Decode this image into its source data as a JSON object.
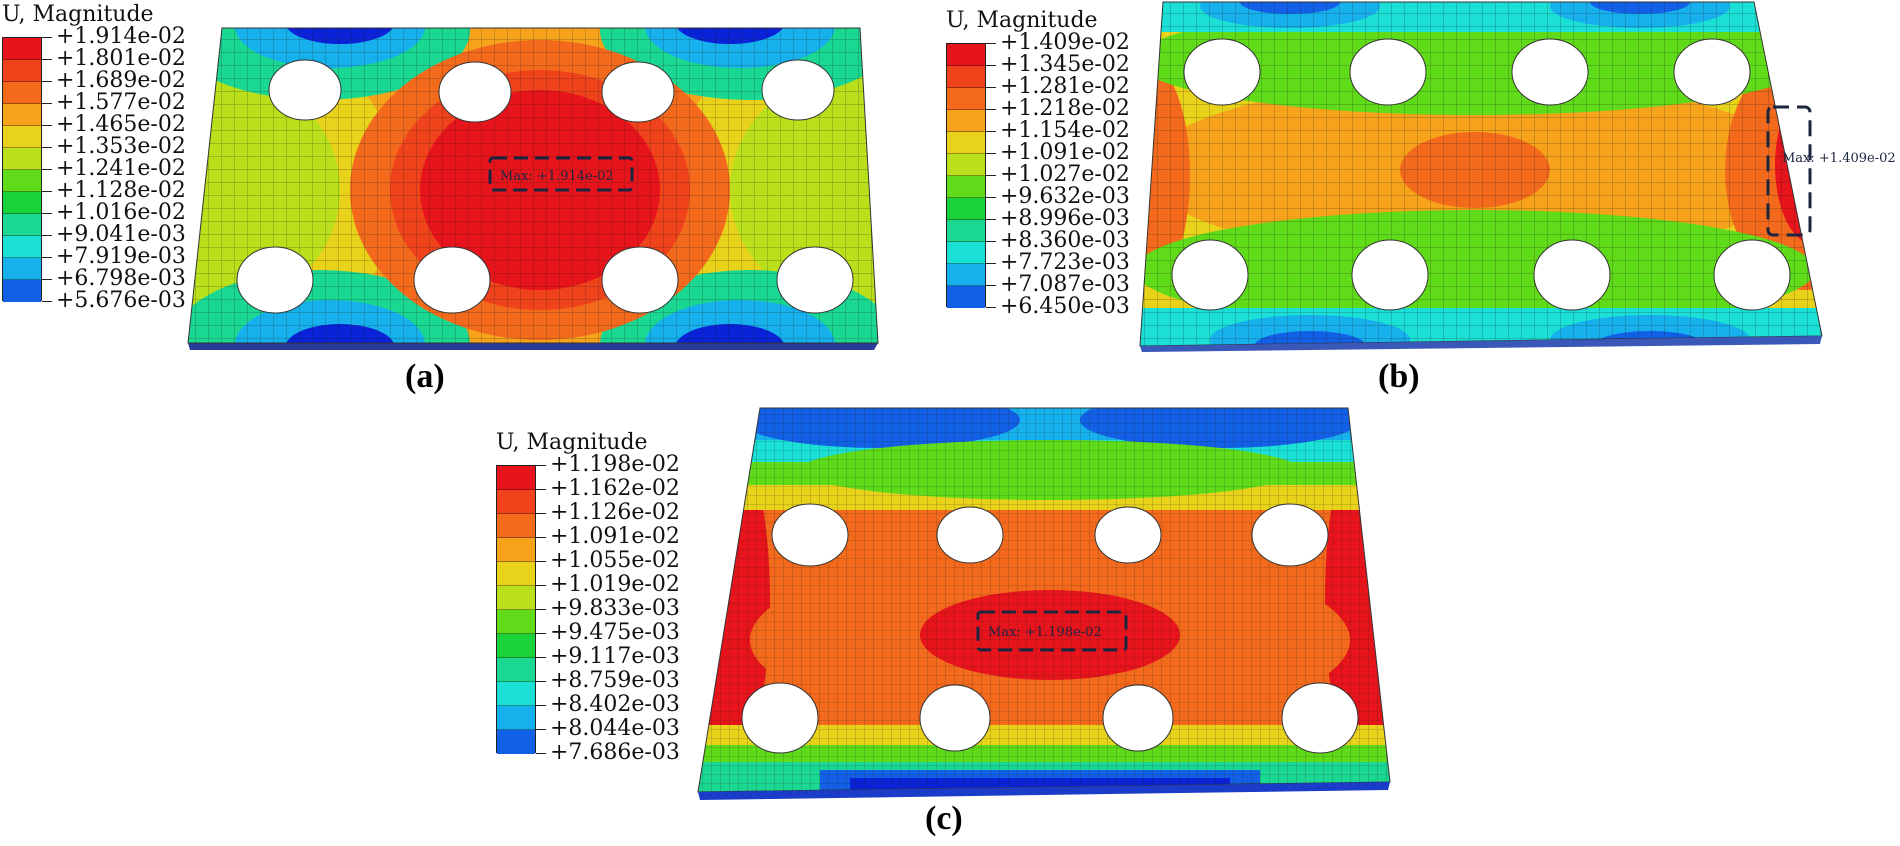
{
  "panels": [
    {
      "id": "a",
      "caption": "(a)",
      "legend_title": "U, Magnitude",
      "levels": [
        "+1.914e-02",
        "+1.801e-02",
        "+1.689e-02",
        "+1.577e-02",
        "+1.465e-02",
        "+1.353e-02",
        "+1.241e-02",
        "+1.128e-02",
        "+1.016e-02",
        "+9.041e-03",
        "+7.919e-03",
        "+6.798e-03",
        "+5.676e-03"
      ],
      "max_label": "Max: +1.914e-02"
    },
    {
      "id": "b",
      "caption": "(b)",
      "legend_title": "U, Magnitude",
      "levels": [
        "+1.409e-02",
        "+1.345e-02",
        "+1.281e-02",
        "+1.218e-02",
        "+1.154e-02",
        "+1.091e-02",
        "+1.027e-02",
        "+9.632e-03",
        "+8.996e-03",
        "+8.360e-03",
        "+7.723e-03",
        "+7.087e-03",
        "+6.450e-03"
      ],
      "max_label": "Max: +1.409e-02"
    },
    {
      "id": "c",
      "caption": "(c)",
      "legend_title": "U, Magnitude",
      "levels": [
        "+1.198e-02",
        "+1.162e-02",
        "+1.126e-02",
        "+1.091e-02",
        "+1.055e-02",
        "+1.019e-02",
        "+9.833e-03",
        "+9.475e-03",
        "+9.117e-03",
        "+8.759e-03",
        "+8.402e-03",
        "+8.044e-03",
        "+7.686e-03"
      ],
      "max_label": "Max: +1.198e-02"
    }
  ],
  "colorbar_colors": [
    "#e8141b",
    "#f0421b",
    "#f46a1c",
    "#f6a21a",
    "#e9d21a",
    "#b9e01a",
    "#5fdb1a",
    "#1ad33b",
    "#1ad892",
    "#1ae0d6",
    "#16b0ec",
    "#1260e6",
    "#0a22d8"
  ]
}
